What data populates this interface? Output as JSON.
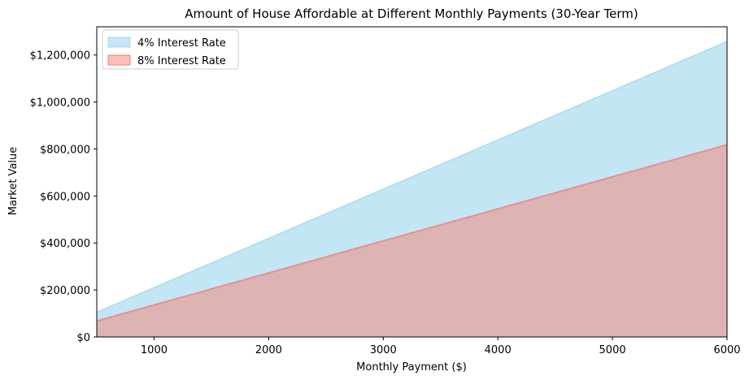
{
  "chart_data": {
    "type": "area",
    "title": "Amount of House Affordable at Different Monthly Payments (30-Year Term)",
    "xlabel": "Monthly Payment ($)",
    "ylabel": "Market Value",
    "xlim": [
      500,
      6000
    ],
    "ylim": [
      0,
      1320000
    ],
    "x_ticks": [
      1000,
      2000,
      3000,
      4000,
      5000,
      6000
    ],
    "x_tick_labels": [
      "1000",
      "2000",
      "3000",
      "4000",
      "5000",
      "6000"
    ],
    "y_ticks": [
      0,
      200000,
      400000,
      600000,
      800000,
      1000000,
      1200000
    ],
    "y_tick_labels": [
      "$0",
      "$200,000",
      "$400,000",
      "$600,000",
      "$800,000",
      "$1,000,000",
      "$1,200,000"
    ],
    "grid": false,
    "legend_position": "top-left",
    "x": [
      500,
      6000
    ],
    "series": [
      {
        "name": "4% Interest Rate",
        "values": [
          105000,
          1257000
        ],
        "fill": "#87ceeb",
        "stroke": "#add8e6",
        "opacity": 0.5
      },
      {
        "name": "8% Interest Rate",
        "values": [
          68000,
          818000
        ],
        "fill": "#fa8072",
        "stroke": "#f08080",
        "opacity": 0.5
      }
    ]
  }
}
